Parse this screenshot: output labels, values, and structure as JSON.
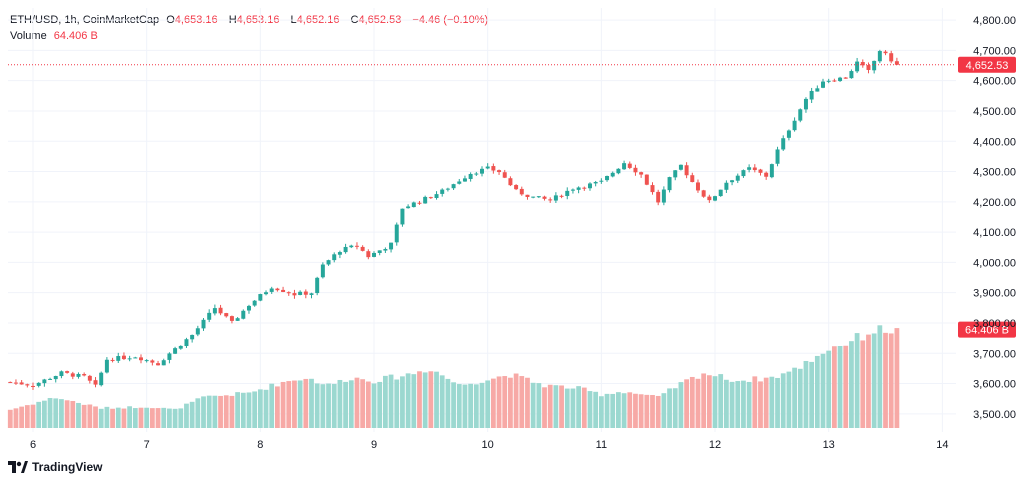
{
  "header": {
    "symbol": "ETH/USD, 1h, CoinMarketCap",
    "o_label": "O",
    "o_value": "4,653.16",
    "h_label": "H",
    "h_value": "4,653.16",
    "l_label": "L",
    "l_value": "4,652.16",
    "c_label": "C",
    "c_value": "4,652.53",
    "change": "−4.46 (−0.10%)",
    "volume_label": "Volume",
    "volume_value": "64.406 B"
  },
  "branding": {
    "text": "TradingView",
    "icon": "tradingview-logo-icon"
  },
  "colors": {
    "up": "#26a69a",
    "down": "#ef5350",
    "up_volume": "#9bd8d0",
    "down_volume": "#f7a9a6",
    "price_line": "#f23645",
    "grid": "#f0f3fa",
    "axis_text": "#131722"
  },
  "chart_data": {
    "type": "candlestick",
    "title": "ETH/USD, 1h, CoinMarketCap",
    "x_tick_labels": [
      "6",
      "7",
      "8",
      "9",
      "10",
      "11",
      "12",
      "13",
      "14"
    ],
    "y_tick_labels": [
      "3,500.00",
      "3,600.00",
      "3,700.00",
      "3,800.00",
      "3,900.00",
      "4,000.00",
      "4,100.00",
      "4,200.00",
      "4,300.00",
      "4,400.00",
      "4,500.00",
      "4,600.00",
      "4,700.00",
      "4,800.00"
    ],
    "y_ticks": [
      3500,
      3600,
      3700,
      3800,
      3900,
      4000,
      4100,
      4200,
      4300,
      4400,
      4500,
      4600,
      4700,
      4800
    ],
    "ylim": [
      3440,
      4840
    ],
    "x_start_day": 5.78,
    "x_end_day": 14.12,
    "candle_count": 157,
    "price_path": [
      [
        5.8,
        3605
      ],
      [
        6.0,
        3595
      ],
      [
        6.25,
        3635
      ],
      [
        6.45,
        3622
      ],
      [
        6.55,
        3590
      ],
      [
        6.65,
        3680
      ],
      [
        6.9,
        3690
      ],
      [
        7.1,
        3665
      ],
      [
        7.2,
        3700
      ],
      [
        7.4,
        3760
      ],
      [
        7.6,
        3850
      ],
      [
        7.75,
        3800
      ],
      [
        7.9,
        3860
      ],
      [
        8.1,
        3920
      ],
      [
        8.3,
        3895
      ],
      [
        8.45,
        3900
      ],
      [
        8.55,
        3990
      ],
      [
        8.7,
        4040
      ],
      [
        8.85,
        4055
      ],
      [
        8.95,
        4020
      ],
      [
        9.15,
        4060
      ],
      [
        9.25,
        4180
      ],
      [
        9.45,
        4210
      ],
      [
        9.6,
        4235
      ],
      [
        9.85,
        4295
      ],
      [
        10.0,
        4310
      ],
      [
        10.1,
        4300
      ],
      [
        10.25,
        4235
      ],
      [
        10.4,
        4215
      ],
      [
        10.55,
        4205
      ],
      [
        10.75,
        4245
      ],
      [
        11.0,
        4265
      ],
      [
        11.2,
        4330
      ],
      [
        11.35,
        4290
      ],
      [
        11.5,
        4200
      ],
      [
        11.6,
        4275
      ],
      [
        11.7,
        4320
      ],
      [
        11.82,
        4255
      ],
      [
        11.95,
        4200
      ],
      [
        12.1,
        4265
      ],
      [
        12.3,
        4310
      ],
      [
        12.45,
        4285
      ],
      [
        12.55,
        4370
      ],
      [
        12.65,
        4440
      ],
      [
        12.8,
        4540
      ],
      [
        12.95,
        4600
      ],
      [
        13.15,
        4610
      ],
      [
        13.25,
        4660
      ],
      [
        13.35,
        4630
      ],
      [
        13.45,
        4700
      ],
      [
        13.6,
        4653
      ]
    ],
    "last_price": 4652.53,
    "last_price_label": "4,652.53",
    "volume_ylim": [
      0,
      72
    ],
    "volume_path": [
      [
        5.8,
        12
      ],
      [
        6.2,
        20
      ],
      [
        6.6,
        13
      ],
      [
        7.0,
        14
      ],
      [
        7.25,
        12
      ],
      [
        7.5,
        20
      ],
      [
        7.9,
        23
      ],
      [
        8.2,
        30
      ],
      [
        8.4,
        33
      ],
      [
        8.6,
        28
      ],
      [
        8.8,
        33
      ],
      [
        9.0,
        31
      ],
      [
        9.3,
        35
      ],
      [
        9.5,
        39
      ],
      [
        9.75,
        28
      ],
      [
        10.2,
        35
      ],
      [
        10.5,
        28
      ],
      [
        10.8,
        26
      ],
      [
        11.0,
        22
      ],
      [
        11.2,
        24
      ],
      [
        11.5,
        20
      ],
      [
        11.7,
        29
      ],
      [
        11.9,
        36
      ],
      [
        12.2,
        31
      ],
      [
        12.5,
        33
      ],
      [
        12.7,
        38
      ],
      [
        13.0,
        52
      ],
      [
        13.2,
        57
      ],
      [
        13.4,
        64
      ],
      [
        13.6,
        64.406
      ]
    ],
    "last_volume_label": "64.406 B"
  }
}
